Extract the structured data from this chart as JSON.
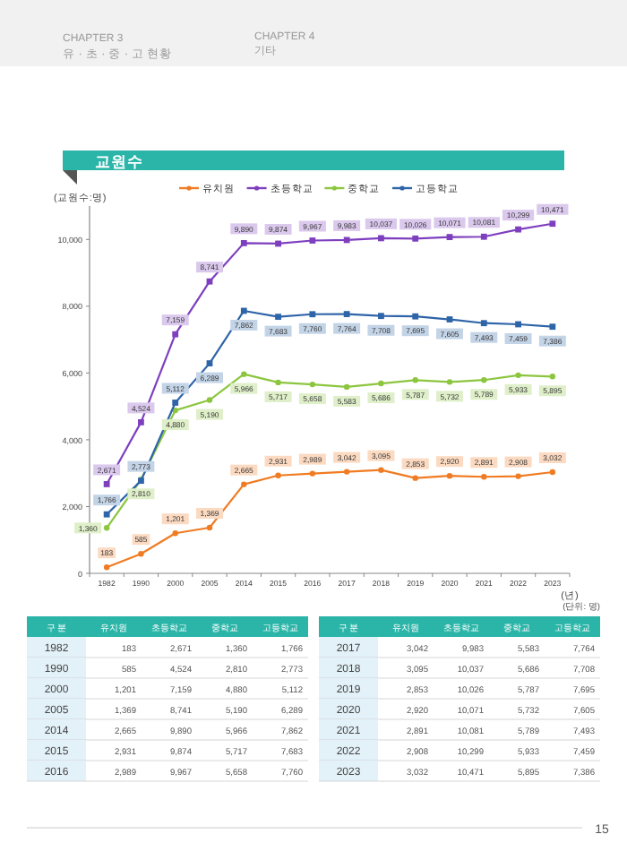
{
  "chart_data": {
    "type": "line",
    "title": "교원수",
    "ylabel": "(교원수:명)",
    "xlabel": "(년)",
    "categories": [
      "1982",
      "1990",
      "2000",
      "2005",
      "2014",
      "2015",
      "2016",
      "2017",
      "2018",
      "2019",
      "2020",
      "2021",
      "2022",
      "2023"
    ],
    "series": [
      {
        "name": "유치원",
        "color": "#f07b22",
        "marker": "circle",
        "values": [
          183,
          585,
          1201,
          1369,
          2665,
          2931,
          2989,
          3042,
          3095,
          2853,
          2920,
          2891,
          2908,
          3032
        ],
        "value_labels": [
          "183",
          "585",
          "1,201",
          "1,369",
          "2,665",
          "2,931",
          "2,989",
          "3,042",
          "3,095",
          "2,853",
          "2,920",
          "2,891",
          "2,908",
          "3,032"
        ]
      },
      {
        "name": "초등학교",
        "color": "#7e3fbf",
        "marker": "square",
        "values": [
          2671,
          4524,
          7159,
          8741,
          9890,
          9874,
          9967,
          9983,
          10037,
          10026,
          10071,
          10081,
          10299,
          10471
        ],
        "value_labels": [
          "2,671",
          "4,524",
          "7,159",
          "8,741",
          "9,890",
          "9,874",
          "9,967",
          "9,983",
          "10,037",
          "10,026",
          "10,071",
          "10,081",
          "10,299",
          "10,471"
        ]
      },
      {
        "name": "중학교",
        "color": "#8cc63f",
        "marker": "circle",
        "values": [
          1360,
          2810,
          4880,
          5190,
          5966,
          5717,
          5658,
          5583,
          5686,
          5787,
          5732,
          5789,
          5933,
          5895
        ],
        "value_labels": [
          "1,360",
          "2,810",
          "4,880",
          "5,190",
          "5,966",
          "5,717",
          "5,658",
          "5,583",
          "5,686",
          "5,787",
          "5,732",
          "5,789",
          "5,933",
          "5,895"
        ]
      },
      {
        "name": "고등학교",
        "color": "#2e64a8",
        "marker": "square",
        "values": [
          1766,
          2773,
          5112,
          6289,
          7862,
          7683,
          7760,
          7764,
          7708,
          7695,
          7605,
          7493,
          7459,
          7386
        ],
        "value_labels": [
          "1,766",
          "2,773",
          "5,112",
          "6,289",
          "7,862",
          "7,683",
          "7,760",
          "7,764",
          "7,708",
          "7,695",
          "7,605",
          "7,493",
          "7,459",
          "7,386"
        ]
      }
    ],
    "ylim": [
      0,
      11000
    ],
    "yticks": [
      0,
      {
        "value": 2000,
        "label": "2,000"
      },
      {
        "value": 4000,
        "label": "4,000"
      },
      {
        "value": 6000,
        "label": "6,000"
      },
      {
        "value": 8000,
        "label": "8,000"
      },
      {
        "value": 10000,
        "label": "10,000"
      }
    ],
    "legend": "top",
    "line_style": "solid",
    "annotations": [
      "CHAPTER 3",
      "유 · 초 · 중 · 고 현황",
      "CHAPTER 4",
      "기타",
      "(단위: 명)",
      "구 분",
      "15"
    ]
  }
}
